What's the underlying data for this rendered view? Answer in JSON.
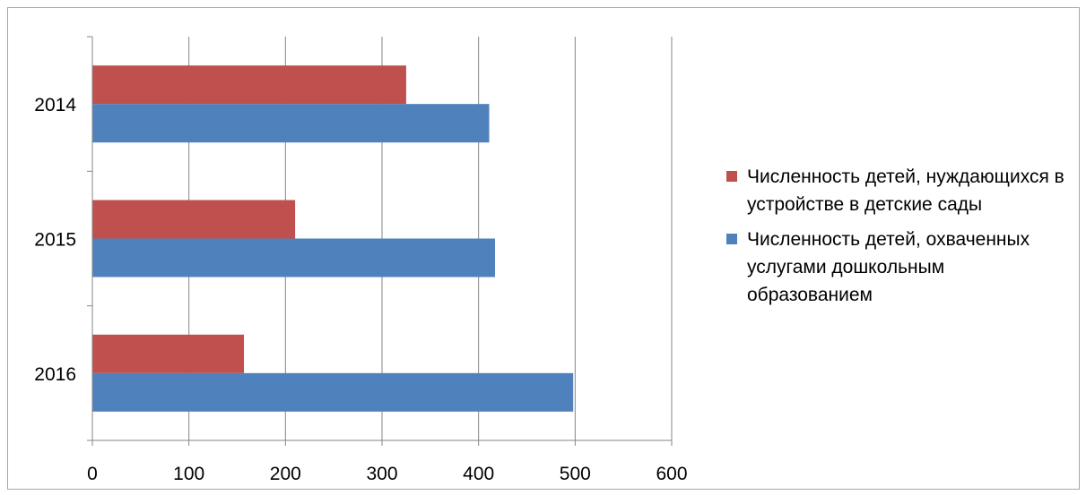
{
  "chart_data": {
    "type": "bar",
    "orientation": "horizontal",
    "categories": [
      "2014",
      "2015",
      "2016"
    ],
    "series": [
      {
        "name": "Численность детей, нуждающихся в устройстве в детские сады",
        "values": [
          325,
          210,
          157
        ],
        "color": "#c0504d"
      },
      {
        "name": "Численность детей, охваченных услугами дошкольным образованием",
        "values": [
          411,
          417,
          498
        ],
        "color": "#4f81bd"
      }
    ],
    "xlim": [
      0,
      600
    ],
    "xticks": [
      "0",
      "100",
      "200",
      "300",
      "400",
      "500",
      "600"
    ],
    "grid": true,
    "legend_position": "right"
  }
}
